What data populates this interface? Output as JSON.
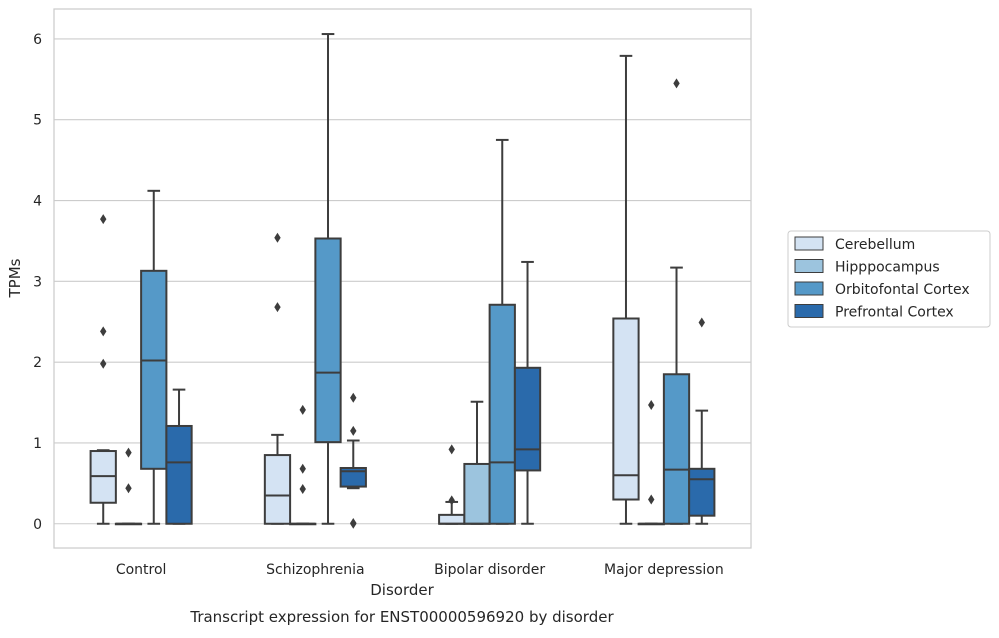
{
  "chart_data": {
    "type": "box",
    "title": "Transcript expression for ENST00000596920 by disorder",
    "xlabel": "Disorder",
    "ylabel": "TPMs",
    "ylim": [
      -0.3,
      6.37
    ],
    "yticks": [
      0,
      1,
      2,
      3,
      4,
      5,
      6
    ],
    "grid": true,
    "legend_position": "right",
    "categories": [
      "Control",
      "Schizophrenia",
      "Bipolar disorder",
      "Major depression"
    ],
    "series": [
      {
        "name": "Cerebellum",
        "color": "#d4e3f3",
        "boxes": [
          {
            "whislo": 0,
            "q1": 0.26,
            "med": 0.59,
            "q3": 0.9,
            "whishi": 0.91,
            "fliers": [
              1.98,
              2.38,
              3.77
            ]
          },
          {
            "whislo": 0,
            "q1": 0,
            "med": 0.35,
            "q3": 0.85,
            "whishi": 1.1,
            "fliers": [
              2.68,
              3.54
            ]
          },
          {
            "whislo": 0,
            "q1": 0,
            "med": 0,
            "q3": 0.11,
            "whishi": 0.27,
            "fliers": [
              0.29,
              0.92
            ]
          },
          {
            "whislo": 0,
            "q1": 0.3,
            "med": 0.6,
            "q3": 2.54,
            "whishi": 5.79,
            "fliers": []
          }
        ]
      },
      {
        "name": "Hipppocampus",
        "color": "#9cc4de",
        "boxes": [
          {
            "whislo": 0,
            "q1": 0,
            "med": 0,
            "q3": 0,
            "whishi": 0,
            "fliers": [
              0.44,
              0.88
            ]
          },
          {
            "whislo": 0,
            "q1": 0,
            "med": 0,
            "q3": 0,
            "whishi": 0,
            "fliers": [
              0.43,
              0.68,
              1.41
            ]
          },
          {
            "whislo": 0,
            "q1": 0,
            "med": 0,
            "q3": 0.74,
            "whishi": 1.51,
            "fliers": []
          },
          {
            "whislo": 0,
            "q1": 0,
            "med": 0,
            "q3": 0,
            "whishi": 0,
            "fliers": [
              0.3,
              1.47
            ]
          }
        ]
      },
      {
        "name": "Orbitofontal Cortex",
        "color": "#5599c8",
        "boxes": [
          {
            "whislo": 0,
            "q1": 0.68,
            "med": 2.02,
            "q3": 3.13,
            "whishi": 4.12,
            "fliers": []
          },
          {
            "whislo": 0,
            "q1": 1.01,
            "med": 1.87,
            "q3": 3.53,
            "whishi": 6.06,
            "fliers": []
          },
          {
            "whislo": 0,
            "q1": 0,
            "med": 0.76,
            "q3": 2.71,
            "whishi": 4.75,
            "fliers": []
          },
          {
            "whislo": 0,
            "q1": 0,
            "med": 0.67,
            "q3": 1.85,
            "whishi": 3.17,
            "fliers": [
              5.45
            ]
          }
        ]
      },
      {
        "name": "Prefrontal Cortex",
        "color": "#2a6aab",
        "boxes": [
          {
            "whislo": 0,
            "q1": 0,
            "med": 0.76,
            "q3": 1.21,
            "whishi": 1.66,
            "fliers": []
          },
          {
            "whislo": 0.44,
            "q1": 0.46,
            "med": 0.65,
            "q3": 0.69,
            "whishi": 1.03,
            "fliers": [
              0,
              0.01,
              1.15,
              1.56
            ]
          },
          {
            "whislo": 0,
            "q1": 0.66,
            "med": 0.92,
            "q3": 1.93,
            "whishi": 3.24,
            "fliers": []
          },
          {
            "whislo": 0,
            "q1": 0.1,
            "med": 0.55,
            "q3": 0.68,
            "whishi": 1.4,
            "fliers": [
              2.49
            ]
          }
        ]
      }
    ]
  }
}
